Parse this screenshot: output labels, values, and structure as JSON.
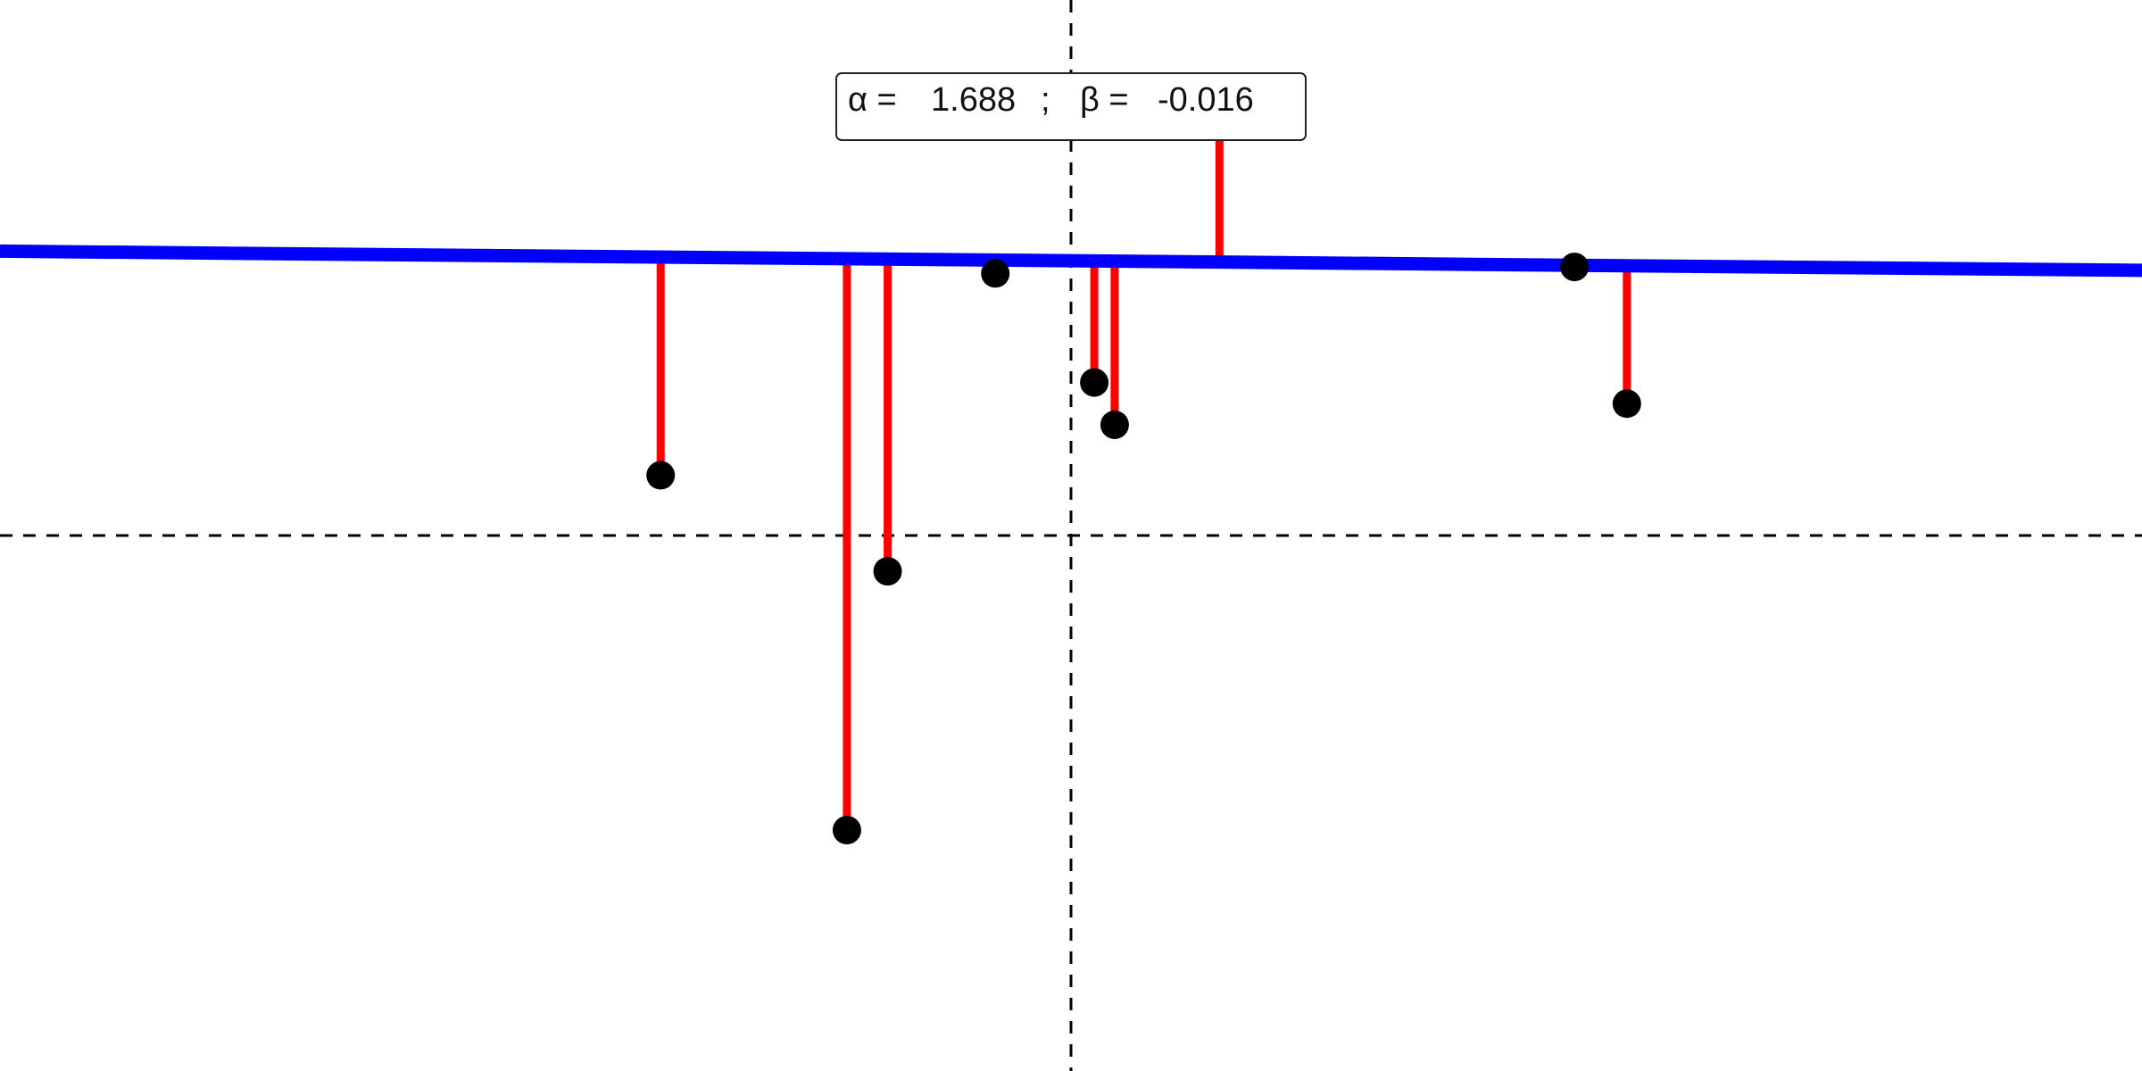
{
  "chart_data": {
    "type": "scatter",
    "x": [
      -1.41,
      -0.77,
      -0.63,
      -0.26,
      0.08,
      0.15,
      0.51,
      1.73,
      1.91
    ],
    "y": [
      0.37,
      -1.81,
      -0.22,
      1.61,
      0.94,
      0.68,
      2.62,
      1.65,
      0.81
    ],
    "xlim": [
      -3.68,
      3.68
    ],
    "ylim": [
      -3.29,
      3.29
    ],
    "alpha_label": "α =",
    "alpha": 1.688,
    "beta_label": "β =",
    "beta": -0.016,
    "point_color": "#000000",
    "line_color": "#0000ff",
    "residual_color": "#ff0000"
  }
}
